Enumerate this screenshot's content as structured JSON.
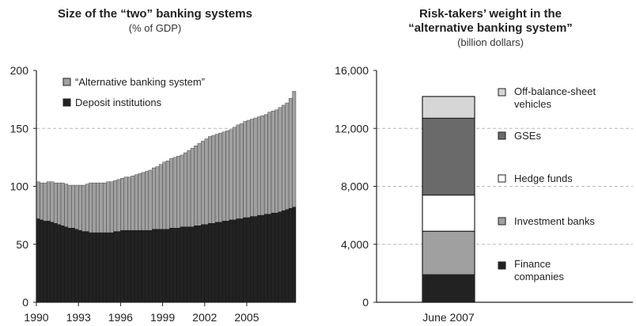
{
  "chart_data": [
    {
      "type": "bar",
      "stacked": true,
      "title": "Size of the “two” banking systems",
      "subtitle": "(% of GDP)",
      "xlabel": "",
      "ylabel": "",
      "ylim": [
        0,
        200
      ],
      "yticks": [
        "0",
        "50",
        "100",
        "150",
        "200"
      ],
      "xticks": [
        "1990",
        "1993",
        "1996",
        "1999",
        "2002",
        "2005"
      ],
      "grid": "dashed line at 150",
      "legend_position": "top-left",
      "period": "quarterly, 1990–2007",
      "series": [
        {
          "name": "Deposit institutions",
          "color": "#222222",
          "values": [
            72,
            71,
            70,
            70,
            69,
            68,
            67,
            66,
            65,
            64,
            64,
            63,
            62,
            61,
            61,
            60,
            60,
            60,
            60,
            60,
            60,
            60,
            61,
            61,
            62,
            62,
            62,
            62,
            62,
            62,
            62,
            62,
            62,
            63,
            63,
            63,
            63,
            63,
            64,
            64,
            64,
            65,
            65,
            65,
            65,
            66,
            66,
            67,
            67,
            68,
            68,
            69,
            69,
            70,
            70,
            71,
            71,
            72,
            72,
            73,
            73,
            74,
            74,
            75,
            75,
            76,
            76,
            77,
            77,
            78,
            79,
            80,
            81,
            82
          ]
        },
        {
          "name": "“Alternative banking system”",
          "color": "#a0a0a0",
          "total_values": [
            104,
            103,
            103,
            104,
            104,
            103,
            103,
            103,
            102,
            101,
            101,
            101,
            101,
            101,
            102,
            103,
            103,
            103,
            103,
            103,
            104,
            104,
            105,
            106,
            107,
            108,
            108,
            109,
            110,
            111,
            112,
            113,
            114,
            116,
            117,
            119,
            121,
            122,
            124,
            125,
            126,
            127,
            129,
            131,
            133,
            135,
            137,
            139,
            141,
            143,
            144,
            145,
            146,
            147,
            148,
            149,
            151,
            153,
            154,
            156,
            157,
            158,
            159,
            160,
            161,
            162,
            164,
            165,
            166,
            168,
            170,
            172,
            176,
            182
          ]
        }
      ]
    },
    {
      "type": "bar",
      "stacked": true,
      "title": "Risk-takers’ weight in the “alternative banking system”",
      "subtitle": "(billion dollars)",
      "xlabel": "",
      "ylabel": "",
      "ylim": [
        0,
        16000
      ],
      "yticks": [
        "0",
        "4,000",
        "8,000",
        "12,000",
        "16,000"
      ],
      "categories": [
        "June 2007"
      ],
      "grid": "dashed lines at 4,000, 8,000, 12,000",
      "legend_position": "right",
      "series": [
        {
          "name": "Finance companies",
          "color": "#222222",
          "values": [
            1900
          ]
        },
        {
          "name": "Investment banks",
          "color": "#a0a0a0",
          "values": [
            3000
          ]
        },
        {
          "name": "Hedge funds",
          "color": "#ffffff",
          "values": [
            2500
          ]
        },
        {
          "name": "GSEs",
          "color": "#6a6a6a",
          "values": [
            5300
          ]
        },
        {
          "name": "Off-balance-sheet vehicles",
          "color": "#d6d6d6",
          "values": [
            1500
          ]
        }
      ]
    }
  ]
}
